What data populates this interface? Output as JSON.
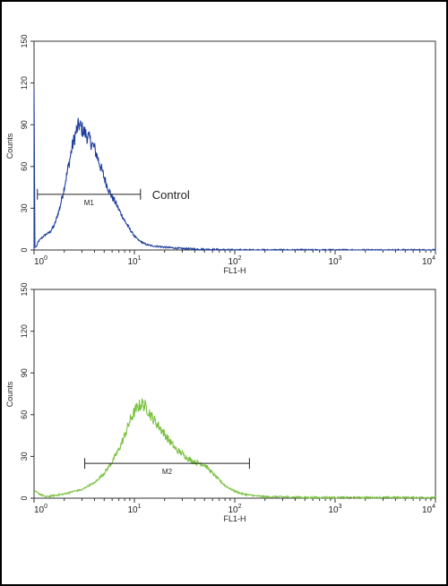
{
  "chart_data": [
    {
      "type": "line",
      "x_scale": "log",
      "xlim": [
        1,
        10000
      ],
      "ylim": [
        0,
        150
      ],
      "x_ticks": [
        1,
        10,
        100,
        1000,
        10000
      ],
      "y_ticks": [
        0,
        30,
        60,
        90,
        120,
        150
      ],
      "x_tick_labels": [
        {
          "base": "10",
          "exp": "0"
        },
        {
          "base": "10",
          "exp": "1"
        },
        {
          "base": "10",
          "exp": "2"
        },
        {
          "base": "10",
          "exp": "3"
        },
        {
          "base": "10",
          "exp": "4"
        }
      ],
      "y_tick_labels": [
        "0",
        "30",
        "60",
        "90",
        "120",
        "150"
      ],
      "xlabel": "FL1-H",
      "ylabel": "Counts",
      "grid": false,
      "series": [
        {
          "color": "#1f3f9e",
          "points": [
            [
              1,
              115
            ],
            [
              1.05,
              2
            ],
            [
              1.1,
              6
            ],
            [
              1.2,
              9
            ],
            [
              1.3,
              11
            ],
            [
              1.45,
              13
            ],
            [
              1.6,
              18
            ],
            [
              1.8,
              30
            ],
            [
              2.0,
              45
            ],
            [
              2.2,
              60
            ],
            [
              2.4,
              74
            ],
            [
              2.6,
              84
            ],
            [
              2.8,
              90
            ],
            [
              3.0,
              87
            ],
            [
              3.3,
              83
            ],
            [
              3.6,
              79
            ],
            [
              4.0,
              73
            ],
            [
              4.5,
              62
            ],
            [
              5.0,
              52
            ],
            [
              5.5,
              44
            ],
            [
              6.0,
              38
            ],
            [
              6.5,
              34
            ],
            [
              7.0,
              29
            ],
            [
              8.0,
              21
            ],
            [
              9.0,
              15
            ],
            [
              10.0,
              10
            ],
            [
              11,
              7
            ],
            [
              13,
              4
            ],
            [
              15,
              3
            ],
            [
              20,
              2
            ],
            [
              30,
              1
            ],
            [
              50,
              0.5
            ],
            [
              100,
              0
            ],
            [
              10000,
              0
            ]
          ]
        }
      ],
      "markers": [
        {
          "label": "M1",
          "x_range": [
            1.08,
            11.5
          ],
          "y": 40
        }
      ],
      "annotations": [
        "Control"
      ]
    },
    {
      "type": "line",
      "x_scale": "log",
      "xlim": [
        1,
        10000
      ],
      "ylim": [
        0,
        150
      ],
      "x_ticks": [
        1,
        10,
        100,
        1000,
        10000
      ],
      "y_ticks": [
        0,
        30,
        60,
        90,
        120,
        150
      ],
      "x_tick_labels": [
        {
          "base": "10",
          "exp": "0"
        },
        {
          "base": "10",
          "exp": "1"
        },
        {
          "base": "10",
          "exp": "2"
        },
        {
          "base": "10",
          "exp": "3"
        },
        {
          "base": "10",
          "exp": "4"
        }
      ],
      "y_tick_labels": [
        "0",
        "30",
        "60",
        "90",
        "120",
        "150"
      ],
      "xlabel": "FL1-H",
      "ylabel": "Counts",
      "grid": false,
      "series": [
        {
          "color": "#7cc242",
          "points": [
            [
              1,
              5
            ],
            [
              1.3,
              1
            ],
            [
              1.6,
              2
            ],
            [
              2.0,
              3
            ],
            [
              2.5,
              5
            ],
            [
              3.0,
              6
            ],
            [
              3.5,
              9
            ],
            [
              4.0,
              11
            ],
            [
              5.0,
              18
            ],
            [
              6.0,
              26
            ],
            [
              7.0,
              35
            ],
            [
              8.0,
              45
            ],
            [
              9.0,
              55
            ],
            [
              10.0,
              62
            ],
            [
              11.0,
              66
            ],
            [
              12.0,
              68
            ],
            [
              13.5,
              64
            ],
            [
              15.0,
              58
            ],
            [
              17.0,
              53
            ],
            [
              20.0,
              46
            ],
            [
              23.0,
              40
            ],
            [
              26.0,
              35
            ],
            [
              30.0,
              32
            ],
            [
              35.0,
              28
            ],
            [
              40.0,
              26
            ],
            [
              45.0,
              25
            ],
            [
              50.0,
              24
            ],
            [
              55.0,
              21
            ],
            [
              60.0,
              18
            ],
            [
              70.0,
              13
            ],
            [
              80.0,
              9
            ],
            [
              100.0,
              5
            ],
            [
              120.0,
              3
            ],
            [
              150,
              2
            ],
            [
              200,
              1
            ],
            [
              300,
              1
            ],
            [
              500,
              0.5
            ],
            [
              1000,
              0.5
            ],
            [
              10000,
              0.5
            ]
          ]
        }
      ],
      "markers": [
        {
          "label": "M2",
          "x_range": [
            3.2,
            140
          ],
          "y": 25
        }
      ],
      "annotations": []
    }
  ]
}
